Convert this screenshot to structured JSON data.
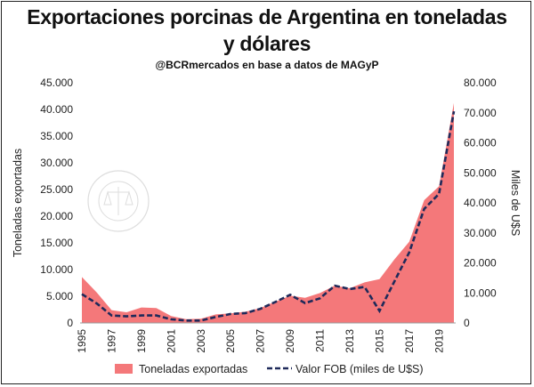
{
  "chart_data": {
    "type": "area",
    "title": "Exportaciones porcinas de Argentina en toneladas y dólares",
    "title_line1": "Exportaciones porcinas de Argentina en toneladas",
    "title_line2": "y dólares",
    "subtitle": "@BCRmercados en base a datos de MAGyP",
    "ylabel_left": "Toneladas exportadas",
    "ylabel_right": "Miles de U$S",
    "ylim_left": [
      0,
      45000
    ],
    "ylim_right": [
      0,
      80000
    ],
    "yticks_left": [
      "0",
      "5.000",
      "10.000",
      "15.000",
      "20.000",
      "25.000",
      "30.000",
      "35.000",
      "40.000",
      "45.000"
    ],
    "yticks_right": [
      "0",
      "10.000",
      "20.000",
      "30.000",
      "40.000",
      "50.000",
      "60.000",
      "70.000",
      "80.000"
    ],
    "x": [
      1995,
      1996,
      1997,
      1998,
      1999,
      2000,
      2001,
      2002,
      2003,
      2004,
      2005,
      2006,
      2007,
      2008,
      2009,
      2010,
      2011,
      2012,
      2013,
      2014,
      2015,
      2016,
      2017,
      2018,
      2019,
      2020
    ],
    "xtick_labels": [
      "1995",
      "1997",
      "1999",
      "2001",
      "2003",
      "2005",
      "2007",
      "2009",
      "2011",
      "2013",
      "2015",
      "2017",
      "2019"
    ],
    "legend_position": "bottom",
    "grid": false,
    "series": [
      {
        "name": "Toneladas exportadas",
        "type": "area",
        "axis": "left",
        "color": "#f4787a",
        "values": [
          8600,
          5700,
          2400,
          2000,
          2900,
          2800,
          1300,
          700,
          800,
          1600,
          1800,
          2100,
          2800,
          4000,
          5100,
          4700,
          5600,
          7000,
          6500,
          7600,
          8200,
          11900,
          15200,
          23000,
          25600,
          41200
        ]
      },
      {
        "name": "Valor FOB (miles de U$S)",
        "type": "line",
        "axis": "right",
        "color": "#1f2a5a",
        "values": [
          9600,
          6500,
          2500,
          2200,
          2500,
          2500,
          1200,
          800,
          800,
          2000,
          3000,
          3300,
          4700,
          7000,
          9400,
          6600,
          8200,
          12400,
          11300,
          12000,
          4000,
          13800,
          23500,
          38000,
          43000,
          70500
        ]
      }
    ]
  }
}
